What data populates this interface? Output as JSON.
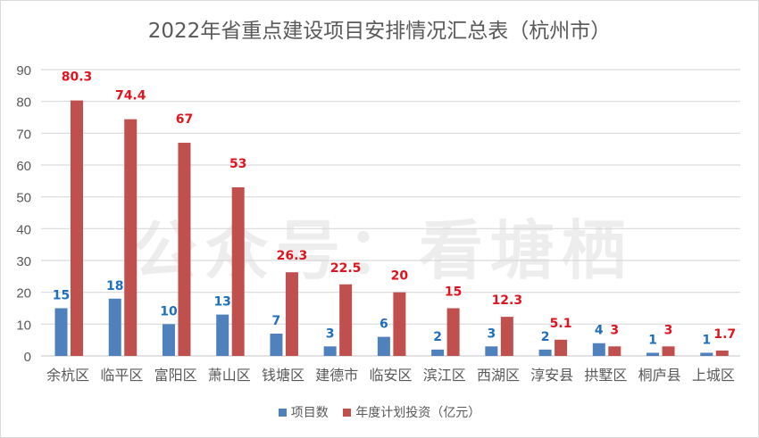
{
  "chart_data": {
    "type": "bar",
    "title": "2022年省重点建设项目安排情况汇总表（杭州市）",
    "categories": [
      "余杭区",
      "临平区",
      "富阳区",
      "萧山区",
      "钱塘区",
      "建德市",
      "临安区",
      "滨江区",
      "西湖区",
      "淳安县",
      "拱墅区",
      "桐庐县",
      "上城区"
    ],
    "series": [
      {
        "name": "项目数",
        "color": "#4f81bd",
        "label_color": "#1f6fbf",
        "values": [
          15,
          18,
          10,
          13,
          7,
          3,
          6,
          2,
          3,
          2,
          4,
          1,
          1
        ]
      },
      {
        "name": "年度计划投资（亿元）",
        "color": "#c0504d",
        "label_color": "#e0141e",
        "values": [
          80.3,
          74.4,
          67,
          53,
          26.3,
          22.5,
          20,
          15,
          12.3,
          5.1,
          3,
          3,
          1.7
        ]
      }
    ],
    "ylim": [
      0,
      90
    ],
    "yticks": [
      0,
      10,
      20,
      30,
      40,
      50,
      60,
      70,
      80,
      90
    ],
    "grid": true,
    "legend": "bottom",
    "data_labels": true
  },
  "watermark": "公众号：看塘栖"
}
